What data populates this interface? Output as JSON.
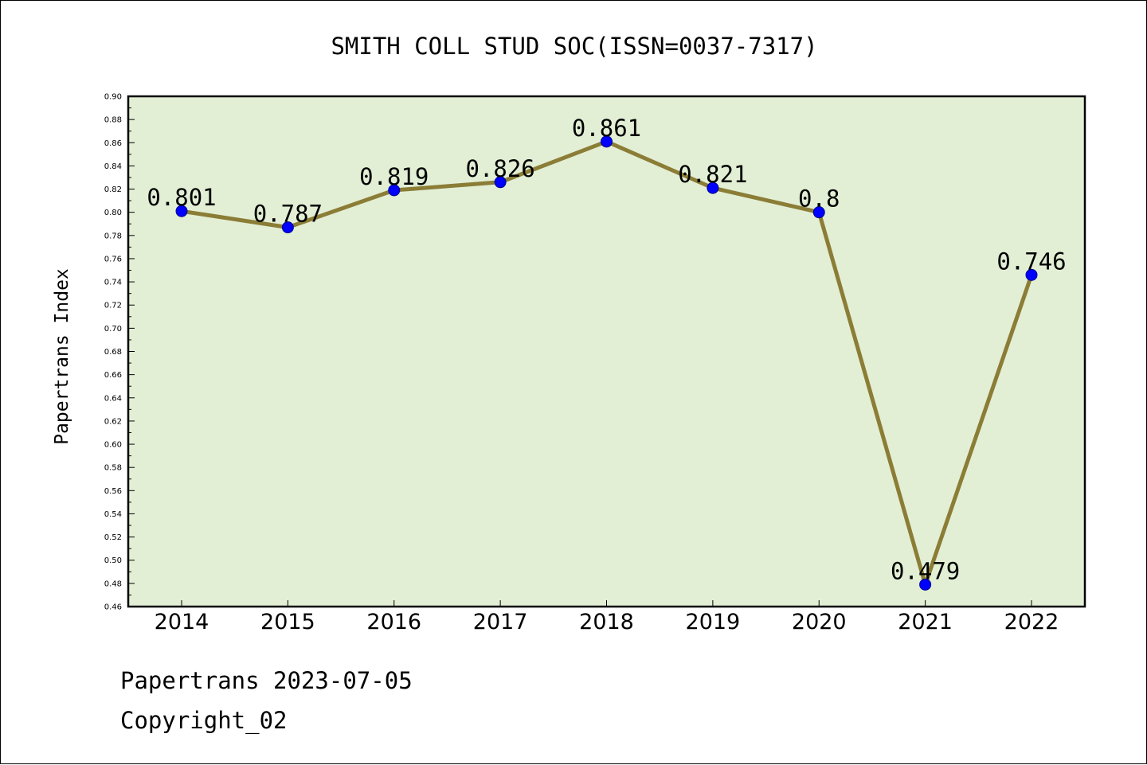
{
  "chart_data": {
    "type": "line",
    "title": "SMITH COLL STUD SOC(ISSN=0037-7317)",
    "xlabel": "",
    "ylabel": "Papertrans Index",
    "categories": [
      "2014",
      "2015",
      "2016",
      "2017",
      "2018",
      "2019",
      "2020",
      "2021",
      "2022"
    ],
    "series": [
      {
        "values": [
          0.801,
          0.787,
          0.819,
          0.826,
          0.861,
          0.821,
          0.8,
          0.479,
          0.746
        ],
        "labels": [
          "0.801",
          "0.787",
          "0.819",
          "0.826",
          "0.861",
          "0.821",
          "0.8",
          "0.479",
          "0.746"
        ]
      }
    ],
    "ylim": [
      0.46,
      0.9
    ],
    "yticks": [
      "0.46",
      "0.48",
      "0.50",
      "0.52",
      "0.54",
      "0.56",
      "0.58",
      "0.60",
      "0.62",
      "0.64",
      "0.66",
      "0.68",
      "0.70",
      "0.72",
      "0.74",
      "0.76",
      "0.78",
      "0.80",
      "0.82",
      "0.84",
      "0.86",
      "0.88",
      "0.90"
    ],
    "grid": false,
    "colors": {
      "plot_background": "#e2efd5",
      "line": "#8b7d36",
      "marker": "#0000ff"
    }
  },
  "footer": {
    "line1": "Papertrans 2023-07-05",
    "line2": "Copyright_02"
  }
}
